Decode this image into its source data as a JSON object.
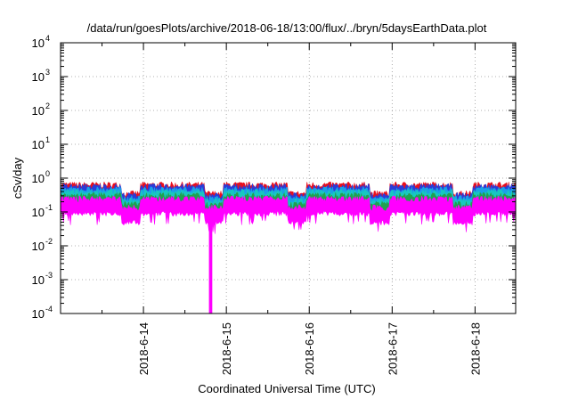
{
  "chart_data": {
    "type": "line",
    "title": "/data/run/goesPlots/archive/2018-06-18/13:00/flux/../bryn/5daysEarthData.plot",
    "xlabel": "Coordinated Universal Time (UTC)",
    "ylabel": "cSv/day",
    "y_scale": "log",
    "ylim": [
      0.0001,
      10000
    ],
    "xlim": [
      0,
      5.49
    ],
    "x_ticks": [
      {
        "x": 1.0,
        "label": "2018-6-14"
      },
      {
        "x": 2.0,
        "label": "2018-6-15"
      },
      {
        "x": 3.0,
        "label": "2018-6-16"
      },
      {
        "x": 4.0,
        "label": "2018-6-17"
      },
      {
        "x": 5.0,
        "label": "2018-6-18"
      }
    ],
    "y_ticks": [
      {
        "exp": -4,
        "base": "10",
        "power": "-4"
      },
      {
        "exp": -3,
        "base": "10",
        "power": "-3"
      },
      {
        "exp": -2,
        "base": "10",
        "power": "-2"
      },
      {
        "exp": -1,
        "base": "10",
        "power": "-1"
      },
      {
        "exp": 0,
        "base": "10",
        "power": "0"
      },
      {
        "exp": 1,
        "base": "10",
        "power": "1"
      },
      {
        "exp": 2,
        "base": "10",
        "power": "2"
      },
      {
        "exp": 3,
        "base": "10",
        "power": "3"
      },
      {
        "exp": 4,
        "base": "10",
        "power": "4"
      }
    ],
    "grid": true,
    "series": [
      {
        "color": "#e8101e",
        "level_top": 0.62,
        "level_bottom": 0.3
      },
      {
        "color": "#2a3cd8",
        "level_top": 0.55,
        "level_bottom": 0.28
      },
      {
        "color": "#1aa0e8",
        "level_top": 0.45,
        "level_bottom": 0.25
      },
      {
        "color": "#18c8c0",
        "level_top": 0.38,
        "level_bottom": 0.22
      },
      {
        "color": "#20a050",
        "level_top": 0.3,
        "level_bottom": 0.2
      },
      {
        "color": "#ff00ff",
        "level_top": 0.24,
        "level_bottom": 0.1
      }
    ],
    "dropout": {
      "x_start": 1.79,
      "x_end": 1.83,
      "y": 0.0001
    }
  }
}
